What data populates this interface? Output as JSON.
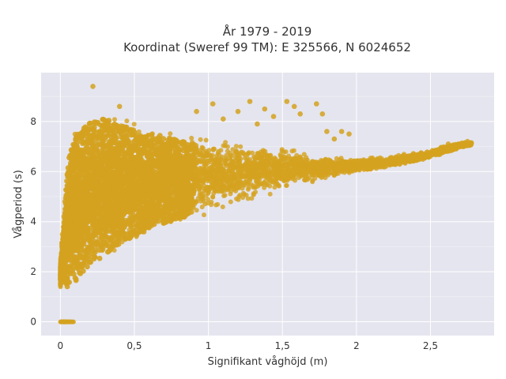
{
  "colors": {
    "plot_background": "#e5e5ef",
    "grid": "#ffffff",
    "points": "#d4a21f"
  },
  "chart_data": {
    "type": "scatter",
    "title": "År 1979 - 2019",
    "subtitle": "Koordinat (Sweref 99 TM): E 325566, N 6024652",
    "xlabel": "Signifikant våghöjd (m)",
    "ylabel": "Vågperiod (s)",
    "xlim": [
      -0.13,
      2.93
    ],
    "ylim": [
      -0.55,
      9.95
    ],
    "x_ticks": [
      0,
      0.5,
      1,
      1.5,
      2,
      2.5
    ],
    "x_tick_labels": [
      "0",
      "0,5",
      "1",
      "1,5",
      "2",
      "2,5"
    ],
    "y_ticks": [
      0,
      2,
      4,
      6,
      8
    ],
    "y_tick_labels": [
      "0",
      "2",
      "4",
      "6",
      "8"
    ],
    "grid": true,
    "series": [
      {
        "marker_color": "#d4a21f",
        "density_envelope": {
          "x": [
            0,
            0.05,
            0.1,
            0.2,
            0.3,
            0.4,
            0.5,
            0.7,
            0.9,
            1.1,
            1.3,
            1.5,
            1.7,
            1.9,
            2.1,
            2.3,
            2.5,
            2.7,
            2.78
          ],
          "y_lower": [
            1.3,
            1.0,
            1.3,
            1.9,
            2.4,
            2.8,
            3.1,
            3.6,
            4.0,
            4.4,
            4.8,
            5.2,
            5.5,
            5.8,
            6.0,
            6.2,
            6.5,
            6.9,
            7.0
          ],
          "y_upper": [
            2.5,
            7.0,
            8.0,
            8.5,
            8.6,
            8.4,
            8.2,
            7.9,
            7.6,
            7.5,
            7.3,
            7.0,
            6.8,
            6.6,
            6.6,
            6.7,
            6.9,
            7.2,
            7.2
          ]
        },
        "zero_period_points": {
          "x_min": 0.0,
          "x_max": 0.09,
          "y": 0
        },
        "outliers": [
          {
            "x": 0.22,
            "y": 9.4
          },
          {
            "x": 0.4,
            "y": 8.6
          },
          {
            "x": 1.03,
            "y": 8.7
          },
          {
            "x": 1.2,
            "y": 8.4
          },
          {
            "x": 1.28,
            "y": 8.8
          },
          {
            "x": 1.38,
            "y": 8.5
          },
          {
            "x": 1.44,
            "y": 8.2
          },
          {
            "x": 1.53,
            "y": 8.8
          },
          {
            "x": 1.58,
            "y": 8.6
          },
          {
            "x": 1.62,
            "y": 8.3
          },
          {
            "x": 1.73,
            "y": 8.7
          },
          {
            "x": 1.77,
            "y": 8.3
          },
          {
            "x": 1.8,
            "y": 7.6
          },
          {
            "x": 1.85,
            "y": 7.3
          },
          {
            "x": 1.9,
            "y": 7.6
          },
          {
            "x": 1.95,
            "y": 7.5
          },
          {
            "x": 0.92,
            "y": 8.4
          },
          {
            "x": 1.1,
            "y": 8.1
          },
          {
            "x": 1.33,
            "y": 7.9
          },
          {
            "x": 2.62,
            "y": 7.1
          },
          {
            "x": 2.75,
            "y": 7.2
          }
        ]
      }
    ]
  }
}
